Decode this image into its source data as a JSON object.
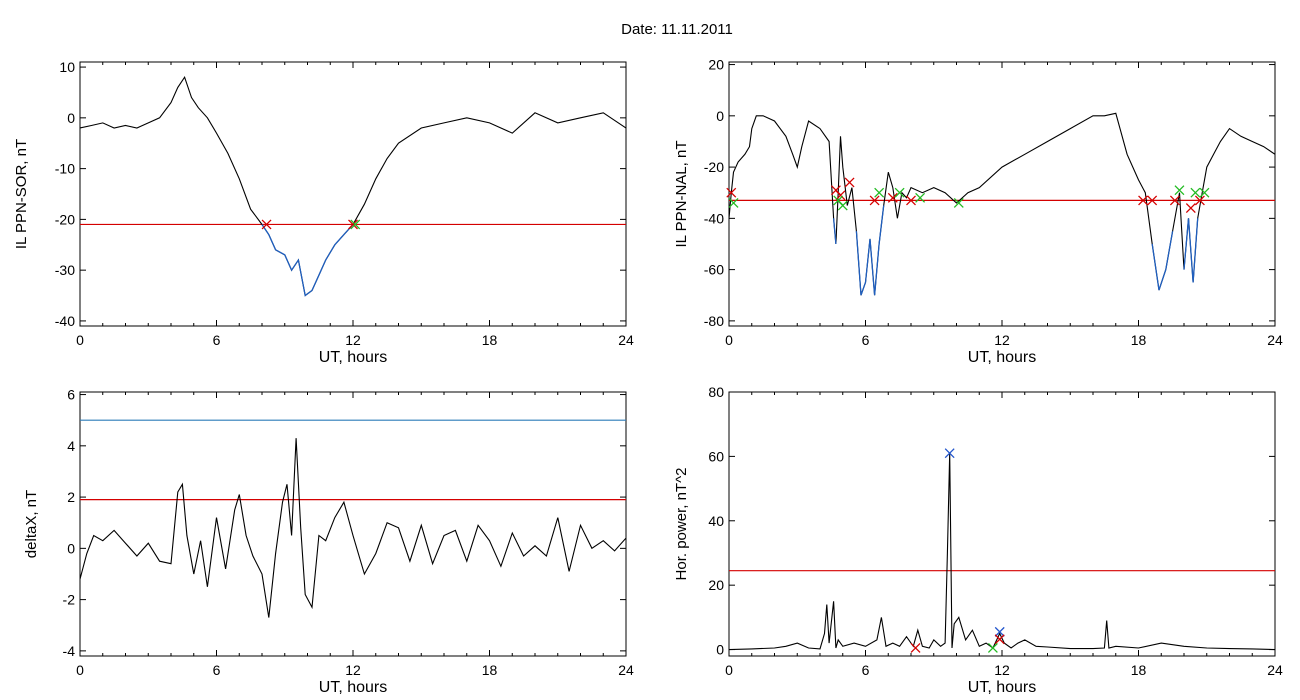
{
  "figure_title": "Date:  11.11.2011",
  "chart_data": [
    {
      "id": "p1",
      "type": "line",
      "ylabel": "IL PPN-SOR, nT",
      "xlabel": "UT, hours",
      "xlim": [
        0,
        24
      ],
      "ylim": [
        -41,
        11
      ],
      "x_ticks": [
        0,
        6,
        12,
        18,
        24
      ],
      "y_ticks": [
        10,
        0,
        -10,
        -20,
        -30,
        -40
      ],
      "hlines": [
        {
          "y": -21,
          "color": "#d40000"
        }
      ],
      "series": [
        {
          "color": "#000000",
          "x": [
            0,
            0.5,
            1,
            1.5,
            2,
            2.5,
            3,
            3.5,
            4,
            4.3,
            4.6,
            4.9,
            5.2,
            5.6,
            6,
            6.5,
            7,
            7.5,
            8,
            8.3,
            8.6,
            9.0,
            9.3,
            9.6,
            9.9,
            10.2,
            10.5,
            10.8,
            11.2,
            11.6,
            12,
            12.5,
            13,
            13.5,
            14,
            15,
            16,
            17,
            18,
            19,
            20,
            21,
            22,
            23,
            24
          ],
          "y": [
            -2,
            -1.5,
            -1,
            -2,
            -1.5,
            -2,
            -1,
            0,
            3,
            6,
            8,
            4,
            2,
            0,
            -3,
            -7,
            -12,
            -18,
            -21,
            -23,
            -26,
            -27,
            -30,
            -28,
            -35,
            -34,
            -31,
            -28,
            -25,
            -23,
            -21,
            -17,
            -12,
            -8,
            -5,
            -2,
            -1,
            0,
            -1,
            -3,
            1,
            -1,
            0,
            1,
            -2
          ]
        }
      ],
      "markers": [
        {
          "x": 8.2,
          "y": -21,
          "symbol": "x",
          "color": "#d40000"
        },
        {
          "x": 12.0,
          "y": -21,
          "symbol": "x",
          "color": "#d40000"
        },
        {
          "x": 12.1,
          "y": -21,
          "symbol": "x",
          "color": "#22bb22"
        }
      ]
    },
    {
      "id": "p2",
      "type": "line",
      "ylabel": "IL PPN-NAL, nT",
      "xlabel": "UT, hours",
      "xlim": [
        0,
        24
      ],
      "ylim": [
        -82,
        21
      ],
      "x_ticks": [
        0,
        6,
        12,
        18,
        24
      ],
      "y_ticks": [
        20,
        0,
        -20,
        -40,
        -60,
        -80
      ],
      "hlines": [
        {
          "y": -33,
          "color": "#d40000"
        }
      ],
      "series": [
        {
          "color": "#000000",
          "x": [
            0,
            0.1,
            0.2,
            0.4,
            0.7,
            0.9,
            1.0,
            1.2,
            1.5,
            2.0,
            2.5,
            2.8,
            3.0,
            3.2,
            3.5,
            4.0,
            4.4,
            4.6,
            4.7,
            4.8,
            4.9,
            5.0,
            5.2,
            5.4,
            5.6,
            5.8,
            6.0,
            6.2,
            6.4,
            6.6,
            6.8,
            7.0,
            7.2,
            7.4,
            7.6,
            7.8,
            8.0,
            8.5,
            9.0,
            9.5,
            10.0,
            10.5,
            11.0,
            12.0,
            13.0,
            14.0,
            15.0,
            16.0,
            16.5,
            17.0,
            17.5,
            18.0,
            18.3,
            18.6,
            18.9,
            19.2,
            19.5,
            19.8,
            20.0,
            20.2,
            20.4,
            20.6,
            20.8,
            21.0,
            21.3,
            21.6,
            22.0,
            22.5,
            23.0,
            23.5,
            24.0
          ],
          "y": [
            -40,
            -30,
            -22,
            -18,
            -15,
            -12,
            -5,
            0,
            0,
            -2,
            -8,
            -15,
            -20,
            -12,
            -2,
            -5,
            -10,
            -40,
            -50,
            -30,
            -8,
            -20,
            -35,
            -28,
            -45,
            -70,
            -65,
            -48,
            -70,
            -50,
            -35,
            -22,
            -28,
            -40,
            -30,
            -32,
            -28,
            -30,
            -28,
            -30,
            -34,
            -30,
            -28,
            -20,
            -15,
            -10,
            -5,
            0,
            0,
            1,
            -15,
            -25,
            -30,
            -50,
            -68,
            -60,
            -45,
            -30,
            -60,
            -40,
            -65,
            -40,
            -30,
            -20,
            -15,
            -10,
            -5,
            -8,
            -10,
            -12,
            -15
          ]
        }
      ],
      "markers": [
        {
          "x": 0.1,
          "y": -30,
          "symbol": "x",
          "color": "#d40000"
        },
        {
          "x": 0.2,
          "y": -34,
          "symbol": "x",
          "color": "#22bb22"
        },
        {
          "x": 4.7,
          "y": -29,
          "symbol": "x",
          "color": "#d40000"
        },
        {
          "x": 4.9,
          "y": -31,
          "symbol": "x",
          "color": "#d40000"
        },
        {
          "x": 4.8,
          "y": -33,
          "symbol": "x",
          "color": "#22bb22"
        },
        {
          "x": 5.0,
          "y": -35,
          "symbol": "x",
          "color": "#22bb22"
        },
        {
          "x": 5.3,
          "y": -26,
          "symbol": "x",
          "color": "#d40000"
        },
        {
          "x": 6.4,
          "y": -33,
          "symbol": "x",
          "color": "#d40000"
        },
        {
          "x": 6.6,
          "y": -30,
          "symbol": "x",
          "color": "#22bb22"
        },
        {
          "x": 7.2,
          "y": -32,
          "symbol": "x",
          "color": "#d40000"
        },
        {
          "x": 7.5,
          "y": -30,
          "symbol": "x",
          "color": "#22bb22"
        },
        {
          "x": 8.0,
          "y": -33,
          "symbol": "x",
          "color": "#d40000"
        },
        {
          "x": 8.4,
          "y": -32,
          "symbol": "x",
          "color": "#22bb22"
        },
        {
          "x": 10.1,
          "y": -34,
          "symbol": "x",
          "color": "#22bb22"
        },
        {
          "x": 18.2,
          "y": -33,
          "symbol": "x",
          "color": "#d40000"
        },
        {
          "x": 18.6,
          "y": -33,
          "symbol": "x",
          "color": "#d40000"
        },
        {
          "x": 19.6,
          "y": -33,
          "symbol": "x",
          "color": "#d40000"
        },
        {
          "x": 19.8,
          "y": -29,
          "symbol": "x",
          "color": "#22bb22"
        },
        {
          "x": 20.3,
          "y": -36,
          "symbol": "x",
          "color": "#d40000"
        },
        {
          "x": 20.5,
          "y": -30,
          "symbol": "x",
          "color": "#22bb22"
        },
        {
          "x": 20.7,
          "y": -33,
          "symbol": "x",
          "color": "#d40000"
        },
        {
          "x": 20.9,
          "y": -30,
          "symbol": "x",
          "color": "#22bb22"
        }
      ]
    },
    {
      "id": "p3",
      "type": "line",
      "ylabel": "deltaX, nT",
      "xlabel": "UT, hours",
      "xlim": [
        0,
        24
      ],
      "ylim": [
        -4.2,
        6.1
      ],
      "x_ticks": [
        0,
        6,
        12,
        18,
        24
      ],
      "y_ticks": [
        6,
        4,
        2,
        0,
        -2,
        -4
      ],
      "hlines": [
        {
          "y": 5.0,
          "color": "#2b7bb9"
        },
        {
          "y": 1.9,
          "color": "#d40000"
        }
      ],
      "series": [
        {
          "color": "#000000",
          "x": [
            0,
            0.3,
            0.6,
            1.0,
            1.5,
            2.0,
            2.5,
            3.0,
            3.5,
            4.0,
            4.3,
            4.5,
            4.7,
            5.0,
            5.3,
            5.6,
            6.0,
            6.4,
            6.8,
            7.0,
            7.3,
            7.6,
            8.0,
            8.3,
            8.6,
            8.9,
            9.1,
            9.3,
            9.5,
            9.7,
            9.9,
            10.2,
            10.5,
            10.8,
            11.2,
            11.6,
            12.0,
            12.5,
            13.0,
            13.5,
            14.0,
            14.5,
            15.0,
            15.5,
            16.0,
            16.5,
            17.0,
            17.5,
            18.0,
            18.5,
            19.0,
            19.5,
            20.0,
            20.5,
            21.0,
            21.5,
            22.0,
            22.5,
            23.0,
            23.5,
            24.0
          ],
          "y": [
            -1.2,
            -0.2,
            0.5,
            0.3,
            0.7,
            0.2,
            -0.3,
            0.2,
            -0.5,
            -0.6,
            2.2,
            2.5,
            0.5,
            -1.0,
            0.3,
            -1.5,
            1.2,
            -0.8,
            1.5,
            2.1,
            0.5,
            -0.3,
            -1.0,
            -2.7,
            -0.2,
            1.8,
            2.5,
            0.5,
            4.3,
            0.8,
            -1.8,
            -2.3,
            0.5,
            0.3,
            1.2,
            1.8,
            0.5,
            -1.0,
            -0.2,
            1.0,
            0.8,
            -0.5,
            0.9,
            -0.6,
            0.5,
            0.7,
            -0.5,
            0.9,
            0.3,
            -0.7,
            0.6,
            -0.3,
            0.1,
            -0.3,
            1.2,
            -0.9,
            0.9,
            0.0,
            0.3,
            -0.1,
            0.4
          ]
        }
      ],
      "markers": []
    },
    {
      "id": "p4",
      "type": "line",
      "ylabel": "Hor. power, nT^2",
      "xlabel": "UT, hours",
      "xlim": [
        0,
        24
      ],
      "ylim": [
        -2,
        80
      ],
      "x_ticks": [
        0,
        6,
        12,
        18,
        24
      ],
      "y_ticks": [
        80,
        60,
        40,
        20,
        0
      ],
      "hlines": [
        {
          "y": 24.5,
          "color": "#d40000"
        }
      ],
      "series": [
        {
          "color": "#000000",
          "x": [
            0,
            1,
            2,
            2.5,
            3,
            3.5,
            4,
            4.2,
            4.3,
            4.4,
            4.6,
            4.7,
            4.8,
            5.0,
            5.5,
            6.0,
            6.5,
            6.7,
            6.9,
            7.2,
            7.5,
            7.8,
            8.1,
            8.3,
            8.5,
            8.8,
            9.0,
            9.3,
            9.5,
            9.6,
            9.7,
            9.8,
            9.9,
            10.1,
            10.4,
            10.7,
            11.0,
            11.3,
            11.6,
            11.9,
            12.1,
            12.4,
            12.7,
            13.0,
            13.5,
            14,
            15,
            16,
            16.5,
            16.6,
            16.7,
            17,
            18,
            19,
            20,
            21,
            22,
            23,
            24
          ],
          "y": [
            0,
            0.2,
            0.5,
            1,
            2,
            0.5,
            0.2,
            5,
            14,
            2,
            15,
            0.5,
            3,
            1,
            2,
            1,
            3,
            10,
            1,
            2,
            1,
            4,
            1,
            6,
            1,
            0.5,
            3,
            1,
            2,
            30,
            61,
            0.5,
            8,
            10,
            3,
            6,
            1,
            2,
            0.5,
            5,
            2,
            0.5,
            2,
            3,
            1,
            0.8,
            0.3,
            0.3,
            0.5,
            9,
            0.5,
            1,
            0.5,
            2,
            1,
            0.5,
            0.3,
            0.2,
            0
          ]
        }
      ],
      "markers": [
        {
          "x": 9.7,
          "y": 61,
          "symbol": "x",
          "color": "#2255cc"
        },
        {
          "x": 11.9,
          "y": 5.5,
          "symbol": "x",
          "color": "#2255cc"
        },
        {
          "x": 11.9,
          "y": 3.2,
          "symbol": "x",
          "color": "#d40000"
        },
        {
          "x": 8.2,
          "y": 0.5,
          "symbol": "x",
          "color": "#d40000"
        },
        {
          "x": 11.6,
          "y": 0.5,
          "symbol": "x",
          "color": "#22bb22"
        }
      ]
    }
  ]
}
